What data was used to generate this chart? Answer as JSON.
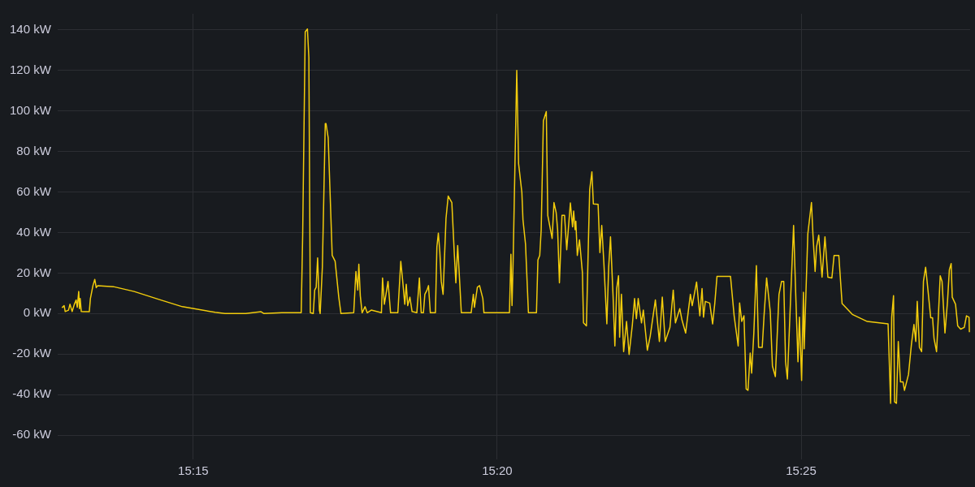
{
  "chart_data": {
    "type": "line",
    "marker": "none",
    "line_style": "solid",
    "grid": true,
    "legend": false,
    "xlim": [
      15.2128,
      15.463
    ],
    "xticks": [
      {
        "value": 15.25,
        "label": "15:15"
      },
      {
        "value": 15.33333,
        "label": "15:20"
      },
      {
        "value": 15.41667,
        "label": "15:25"
      }
    ],
    "ylim": [
      -72,
      148
    ],
    "yticks": [
      {
        "value": -60,
        "label": "-60 kW"
      },
      {
        "value": -40,
        "label": "-40 kW"
      },
      {
        "value": -20,
        "label": "-20 kW"
      },
      {
        "value": 0,
        "label": "0 kW"
      },
      {
        "value": 20,
        "label": "20 kW"
      },
      {
        "value": 40,
        "label": "40 kW"
      },
      {
        "value": 60,
        "label": "60 kW"
      },
      {
        "value": 80,
        "label": "80 kW"
      },
      {
        "value": 100,
        "label": "100 kW"
      },
      {
        "value": 120,
        "label": "120 kW"
      },
      {
        "value": 140,
        "label": "140 kW"
      }
    ],
    "series": [
      {
        "color": "#f2cc0c",
        "x": [
          15.214,
          15.2146,
          15.2149,
          15.2158,
          15.2162,
          15.2168,
          15.2174,
          15.2179,
          15.2182,
          15.2186,
          15.2188,
          15.219,
          15.2193,
          15.2199,
          15.2215,
          15.2218,
          15.2225,
          15.223,
          15.2234,
          15.2238,
          15.2281,
          15.2338,
          15.2404,
          15.247,
          15.256,
          15.2587,
          15.2644,
          15.2686,
          15.2694,
          15.2743,
          15.2796,
          15.28,
          15.2807,
          15.2813,
          15.2817,
          15.2821,
          15.2829,
          15.2833,
          15.2837,
          15.2841,
          15.2846,
          15.2848,
          15.2854,
          15.2862,
          15.2864,
          15.287,
          15.2881,
          15.2889,
          15.2899,
          15.2905,
          15.294,
          15.2946,
          15.2951,
          15.2954,
          15.2958,
          15.2963,
          15.2971,
          15.2977,
          15.2988,
          15.3016,
          15.3019,
          15.3024,
          15.3031,
          15.3034,
          15.3041,
          15.3061,
          15.3069,
          15.3074,
          15.308,
          15.3084,
          15.3088,
          15.3094,
          15.31,
          15.3113,
          15.312,
          15.3125,
          15.3131,
          15.3135,
          15.3141,
          15.3145,
          15.315,
          15.3164,
          15.3168,
          15.3172,
          15.3176,
          15.318,
          15.3185,
          15.3193,
          15.3199,
          15.3209,
          15.3216,
          15.322,
          15.3225,
          15.323,
          15.3235,
          15.3262,
          15.3268,
          15.3271,
          15.3279,
          15.3285,
          15.3294,
          15.3297,
          15.3367,
          15.3371,
          15.3374,
          15.3377,
          15.3387,
          15.3392,
          15.3401,
          15.3404,
          15.3411,
          15.3419,
          15.3441,
          15.3445,
          15.345,
          15.3454,
          15.346,
          15.3468,
          15.3472,
          15.3478,
          15.3484,
          15.3489,
          15.3495,
          15.3499,
          15.3504,
          15.3511,
          15.3518,
          15.3524,
          15.3534,
          15.354,
          15.3543,
          15.3547,
          15.3549,
          15.3553,
          15.3559,
          15.3567,
          15.357,
          15.3578,
          15.3584,
          15.3587,
          15.3593,
          15.3597,
          15.361,
          15.3615,
          15.362,
          15.3626,
          15.3634,
          15.3639,
          15.3644,
          15.3651,
          15.3656,
          15.3661,
          15.3666,
          15.3669,
          15.3674,
          15.368,
          15.3688,
          15.3695,
          15.3704,
          15.371,
          15.3715,
          15.372,
          15.3729,
          15.3734,
          15.3745,
          15.3753,
          15.3767,
          15.3778,
          15.3786,
          15.3794,
          15.3807,
          15.3816,
          15.3822,
          15.3834,
          15.384,
          15.385,
          15.3863,
          15.3868,
          15.388,
          15.3889,
          15.3895,
          15.3899,
          15.3904,
          15.3916,
          15.3924,
          15.393,
          15.3936,
          15.3973,
          15.3983,
          15.3994,
          15.3998,
          15.4004,
          15.401,
          15.4016,
          15.4021,
          15.4027,
          15.4031,
          15.4037,
          15.4044,
          15.405,
          15.406,
          15.4065,
          15.4072,
          15.4082,
          15.4088,
          15.4096,
          15.4106,
          15.4113,
          15.4119,
          15.4124,
          15.4129,
          15.4136,
          15.4146,
          15.4152,
          15.4158,
          15.4162,
          15.4168,
          15.4173,
          15.4175,
          15.4185,
          15.4195,
          15.4199,
          15.4205,
          15.4209,
          15.4215,
          15.4224,
          15.4232,
          15.424,
          15.4251,
          15.4257,
          15.427,
          15.4279,
          15.4307,
          15.4348,
          15.4405,
          15.4412,
          15.4415,
          15.442,
          15.4423,
          15.4428,
          15.4433,
          15.4439,
          15.4446,
          15.445,
          15.4461,
          15.4469,
          15.4476,
          15.4481,
          15.4485,
          15.4491,
          15.4497,
          15.4502,
          15.4508,
          15.4512,
          15.4522,
          15.4527,
          15.4531,
          15.4538,
          15.4543,
          15.4548,
          15.4553,
          15.4561,
          15.4568,
          15.4573,
          15.4578,
          15.4581,
          15.459,
          15.4596,
          15.4604,
          15.4614,
          15.462,
          15.4627,
          15.4628
        ],
        "values": [
          2.9,
          3.9,
          1.0,
          1.7,
          4.6,
          1.0,
          4.6,
          6.7,
          3.1,
          10.9,
          2.4,
          7.4,
          1.0,
          0.9,
          0.9,
          7.4,
          13.8,
          16.9,
          12.8,
          13.8,
          13.3,
          10.9,
          7.1,
          3.4,
          0.6,
          0,
          0,
          0.9,
          0,
          0.4,
          0.4,
          38.5,
          139.1,
          140.5,
          126.4,
          0.4,
          0,
          11.6,
          13.0,
          27.5,
          1.7,
          0,
          22.9,
          93.8,
          93.8,
          86.7,
          28.7,
          25.8,
          8.1,
          0,
          0.4,
          20.8,
          11.6,
          24.4,
          8.8,
          0.4,
          3.4,
          0.4,
          1.7,
          0.4,
          17.6,
          4.6,
          12.4,
          15.9,
          0.4,
          0.4,
          25.8,
          16.6,
          4.6,
          14.5,
          3.9,
          8.1,
          1.0,
          0.4,
          17.6,
          0.4,
          0.4,
          9.5,
          11.6,
          13.8,
          0.4,
          0.4,
          32.9,
          39.7,
          30.7,
          15.9,
          9.5,
          47.0,
          58.0,
          54.8,
          28.7,
          15.2,
          33.6,
          17.3,
          0.4,
          0.4,
          9.5,
          3.1,
          13.0,
          13.8,
          7.4,
          0.4,
          0.4,
          29.3,
          3.9,
          25.8,
          120,
          74.0,
          59.8,
          46.3,
          34.3,
          0.4,
          0.4,
          26.5,
          28.7,
          41.4,
          95.2,
          99.7,
          48.5,
          42.8,
          37.1,
          54.8,
          49.9,
          41.4,
          15.2,
          48.5,
          48.5,
          31.5,
          54.6,
          42.8,
          50.6,
          41.4,
          45.6,
          28.7,
          36.4,
          20.2,
          -4.6,
          -6.1,
          39.7,
          61.2,
          70.0,
          54.1,
          53.9,
          30.1,
          43.5,
          24.4,
          -5.1,
          22.9,
          37.9,
          8.8,
          -16.0,
          12.4,
          18.7,
          -11.7,
          9.5,
          -18.8,
          -3.9,
          -20.2,
          -5.4,
          7.4,
          -2.5,
          7.4,
          -4.6,
          1.7,
          -18.1,
          -11.0,
          6.7,
          -13.8,
          8.1,
          -13.8,
          -6.8,
          11.6,
          -4.6,
          2.4,
          -3.2,
          -9.6,
          9.5,
          3.9,
          15.6,
          -1.1,
          12.4,
          -1.8,
          6.0,
          5.2,
          -5.1,
          5.2,
          18.4,
          18.4,
          -1.1,
          -16.0,
          5.2,
          -3.9,
          -1.1,
          -37.2,
          -37.9,
          -19.5,
          -29.4,
          -9.6,
          23.7,
          -16.7,
          -16.7,
          -1.1,
          17.6,
          1.0,
          -25.9,
          -31.1,
          9.5,
          15.9,
          15.9,
          -23.8,
          -32.3,
          -0.7,
          43.5,
          8.8,
          -23.8,
          -1.8,
          -33.0,
          10.5,
          -17.4,
          39.3,
          54.8,
          39.2,
          20.8,
          32.9,
          38.7,
          18.0,
          37.9,
          18.0,
          17.6,
          28.7,
          28.7,
          4.9,
          -0.4,
          -3.9,
          -5.1,
          -44.3,
          -1.8,
          8.8,
          -43.6,
          -44.3,
          -13.8,
          -33.7,
          -33.7,
          -37.9,
          -30.1,
          -15.3,
          -5.4,
          -13.8,
          6.0,
          -16.7,
          -18.8,
          15.9,
          22.9,
          15.9,
          -2.1,
          -2.1,
          -12.2,
          -18.8,
          -1.1,
          18.7,
          15.9,
          -9.6,
          6.0,
          21.6,
          24.7,
          8.1,
          4.6,
          -6.1,
          -7.7,
          -6.8,
          -1.1,
          -1.8,
          -9.2
        ]
      }
    ]
  }
}
